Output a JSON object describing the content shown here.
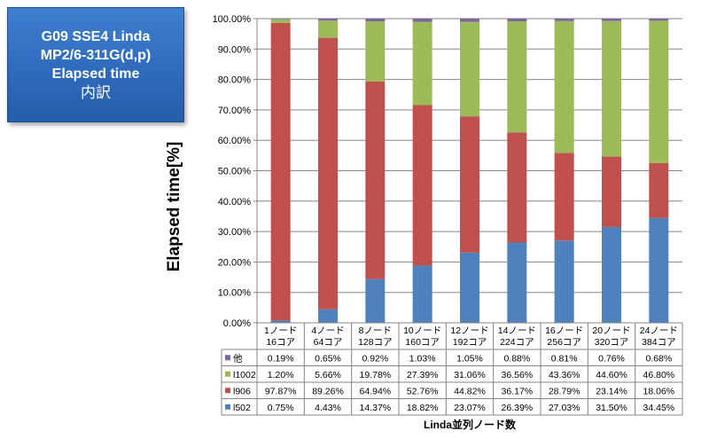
{
  "title_box": {
    "line1": "G09 SSE4 Linda",
    "line2": "MP2/6-311G(d,p)",
    "line3": "Elapsed time",
    "line4": "内訳"
  },
  "chart_data": {
    "type": "bar",
    "stacked": true,
    "ylabel": "Elapsed time[%]",
    "xlabel": "Linda並列ノード数",
    "ylim": [
      0,
      100
    ],
    "yticks": [
      "0.00%",
      "10.00%",
      "20.00%",
      "30.00%",
      "40.00%",
      "50.00%",
      "60.00%",
      "70.00%",
      "80.00%",
      "90.00%",
      "100.00%"
    ],
    "grid": true,
    "categories": [
      [
        "1ノード",
        "16コア"
      ],
      [
        "4ノード",
        "64コア"
      ],
      [
        "8ノード",
        "128コア"
      ],
      [
        "10ノード",
        "160コア"
      ],
      [
        "12ノード",
        "192コア"
      ],
      [
        "14ノード",
        "224コア"
      ],
      [
        "16ノード",
        "256コア"
      ],
      [
        "20ノード",
        "320コア"
      ],
      [
        "24ノード",
        "384コア"
      ]
    ],
    "series": [
      {
        "name": "l502",
        "color": "#4f81bd",
        "values": [
          0.75,
          4.43,
          14.37,
          18.82,
          23.07,
          26.39,
          27.03,
          31.5,
          34.45
        ],
        "labels": [
          "0.75%",
          "4.43%",
          "14.37%",
          "18.82%",
          "23.07%",
          "26.39%",
          "27.03%",
          "31.50%",
          "34.45%"
        ]
      },
      {
        "name": "l906",
        "color": "#c0504d",
        "values": [
          97.87,
          89.26,
          64.94,
          52.76,
          44.82,
          36.17,
          28.79,
          23.14,
          18.06
        ],
        "labels": [
          "97.87%",
          "89.26%",
          "64.94%",
          "52.76%",
          "44.82%",
          "36.17%",
          "28.79%",
          "23.14%",
          "18.06%"
        ]
      },
      {
        "name": "l1002",
        "color": "#9bbb59",
        "values": [
          1.2,
          5.66,
          19.78,
          27.39,
          31.06,
          36.56,
          43.36,
          44.6,
          46.8
        ],
        "labels": [
          "1.20%",
          "5.66%",
          "19.78%",
          "27.39%",
          "31.06%",
          "36.56%",
          "43.36%",
          "44.60%",
          "46.80%"
        ]
      },
      {
        "name": "他",
        "color": "#8064a2",
        "values": [
          0.19,
          0.65,
          0.92,
          1.03,
          1.05,
          0.88,
          0.81,
          0.76,
          0.68
        ],
        "labels": [
          "0.19%",
          "0.65%",
          "0.92%",
          "1.03%",
          "1.05%",
          "0.88%",
          "0.81%",
          "0.76%",
          "0.68%"
        ]
      }
    ],
    "table_row_order": [
      "他",
      "l1002",
      "l906",
      "l502"
    ]
  }
}
